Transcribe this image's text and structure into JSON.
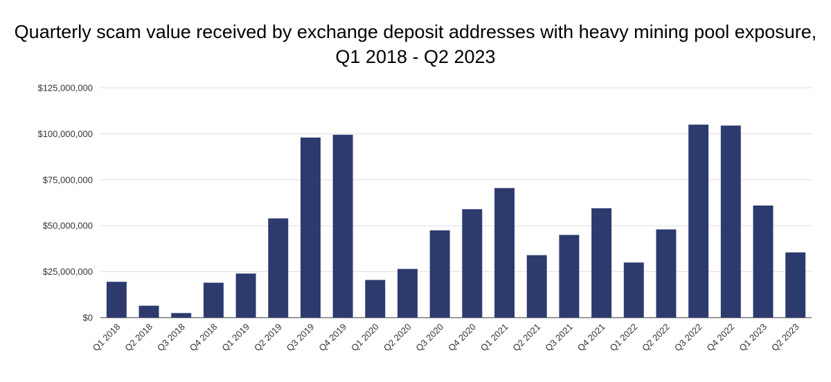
{
  "chart_data": {
    "type": "bar",
    "title": "Quarterly scam value received by exchange deposit addresses with heavy mining pool exposure, Q1 2018 - Q2 2023",
    "xlabel": "",
    "ylabel": "",
    "categories": [
      "Q1 2018",
      "Q2 2018",
      "Q3 2018",
      "Q4 2018",
      "Q1 2019",
      "Q2 2019",
      "Q3 2019",
      "Q4 2019",
      "Q1 2020",
      "Q2 2020",
      "Q3 2020",
      "Q4 2020",
      "Q1 2021",
      "Q2 2021",
      "Q3 2021",
      "Q4 2021",
      "Q1 2022",
      "Q2 2022",
      "Q3 2022",
      "Q4 2022",
      "Q1 2023",
      "Q2 2023"
    ],
    "values": [
      19500000,
      6500000,
      2500000,
      19000000,
      24000000,
      54000000,
      98000000,
      99500000,
      20500000,
      26500000,
      47500000,
      59000000,
      70500000,
      34000000,
      45000000,
      59500000,
      30000000,
      48000000,
      105000000,
      104500000,
      61000000,
      35500000
    ],
    "ylim": [
      0,
      125000000
    ],
    "yticks": [
      0,
      25000000,
      50000000,
      75000000,
      100000000,
      125000000
    ],
    "ytick_labels": [
      "$0",
      "$25,000,000",
      "$50,000,000",
      "$75,000,000",
      "$100,000,000",
      "$125,000,000"
    ],
    "grid": true,
    "bar_color": "#2d3a6e",
    "grid_color": "#dddddd"
  }
}
